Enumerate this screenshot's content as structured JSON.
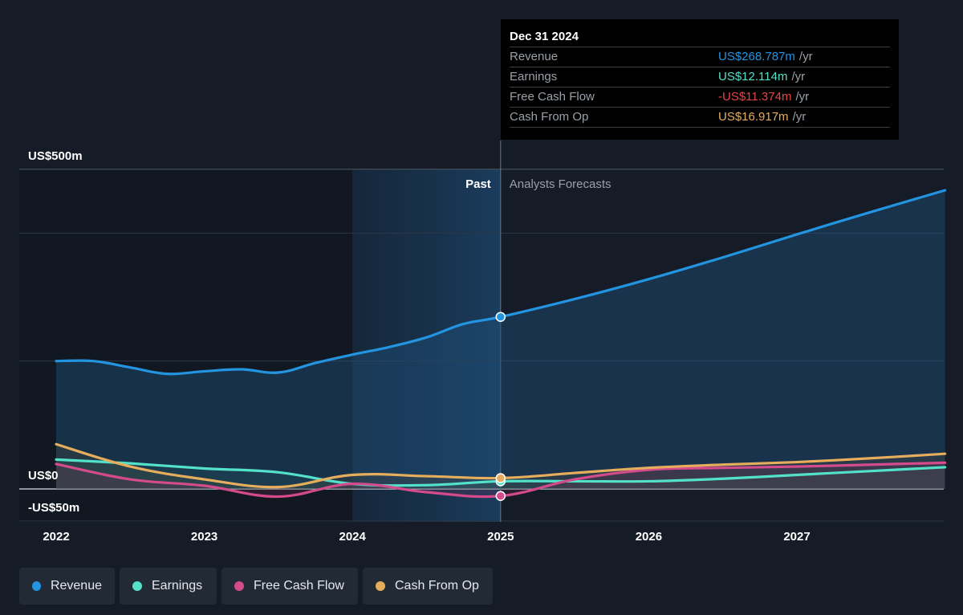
{
  "chart_data": {
    "type": "line",
    "x_label_ticks": [
      "2022",
      "2023",
      "2024",
      "2025",
      "2026",
      "2027"
    ],
    "y_axis_labels": {
      "top": "US$500m",
      "zero": "US$0",
      "bottom": "-US$50m"
    },
    "ylim": [
      -50,
      500
    ],
    "xlim": [
      2022.0,
      2028.0
    ],
    "past_label": "Past",
    "forecast_label": "Analysts Forecasts",
    "divider_x": 2025.0,
    "highlight_start_x": 2024.0,
    "series": [
      {
        "name": "Revenue",
        "color": "#2394df",
        "x": [
          2022.0,
          2022.25,
          2022.5,
          2022.75,
          2023.0,
          2023.25,
          2023.5,
          2023.75,
          2024.0,
          2024.25,
          2024.5,
          2024.75,
          2025.0,
          2025.5,
          2026.0,
          2026.5,
          2027.0,
          2027.5,
          2028.0
        ],
        "y": [
          200,
          200,
          190,
          180,
          184,
          187,
          182,
          197,
          210,
          222,
          237,
          258,
          269,
          297,
          328,
          362,
          398,
          433,
          467
        ]
      },
      {
        "name": "Earnings",
        "color": "#54e1c9",
        "x": [
          2022.0,
          2022.5,
          2023.0,
          2023.5,
          2024.0,
          2024.5,
          2025.0,
          2025.5,
          2026.0,
          2026.5,
          2027.0,
          2027.5,
          2028.0
        ],
        "y": [
          46,
          40,
          32,
          26,
          8,
          6,
          12,
          12,
          12,
          16,
          22,
          28,
          34
        ]
      },
      {
        "name": "Free Cash Flow",
        "color": "#d44b8c",
        "x": [
          2022.0,
          2022.5,
          2023.0,
          2023.5,
          2024.0,
          2024.5,
          2025.0,
          2025.5,
          2026.0,
          2026.5,
          2027.0,
          2027.5,
          2028.0
        ],
        "y": [
          39,
          15,
          5,
          -12,
          8,
          -5,
          -11,
          15,
          30,
          33,
          35,
          38,
          41
        ]
      },
      {
        "name": "Cash From Op",
        "color": "#e6ad5c",
        "x": [
          2022.0,
          2022.5,
          2023.0,
          2023.5,
          2024.0,
          2024.5,
          2025.0,
          2025.5,
          2026.0,
          2026.5,
          2027.0,
          2027.5,
          2028.0
        ],
        "y": [
          70,
          35,
          15,
          3,
          22,
          20,
          17,
          25,
          33,
          38,
          42,
          48,
          55
        ]
      }
    ]
  },
  "tooltip": {
    "date": "Dec 31 2024",
    "rows": [
      {
        "label": "Revenue",
        "value": "US$268.787m",
        "unit": "/yr",
        "color": "#2394df"
      },
      {
        "label": "Earnings",
        "value": "US$12.114m",
        "unit": "/yr",
        "color": "#54e1c9"
      },
      {
        "label": "Free Cash Flow",
        "value": "-US$11.374m",
        "unit": "/yr",
        "color": "#e64545"
      },
      {
        "label": "Cash From Op",
        "value": "US$16.917m",
        "unit": "/yr",
        "color": "#e6ad5c"
      }
    ]
  },
  "legend": [
    {
      "label": "Revenue",
      "color": "#2394df"
    },
    {
      "label": "Earnings",
      "color": "#54e1c9"
    },
    {
      "label": "Free Cash Flow",
      "color": "#d44b8c"
    },
    {
      "label": "Cash From Op",
      "color": "#e6ad5c"
    }
  ]
}
